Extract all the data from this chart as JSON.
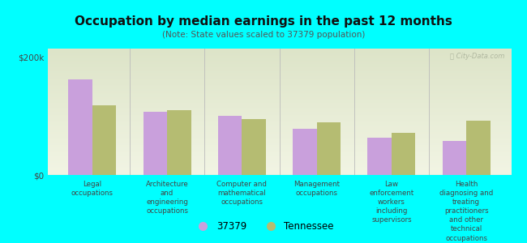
{
  "title": "Occupation by median earnings in the past 12 months",
  "subtitle": "(Note: State values scaled to 37379 population)",
  "background_color": "#00FFFF",
  "plot_bg_color_top": "#e8edd8",
  "plot_bg_color_bottom": "#f5f7ec",
  "categories": [
    "Legal\noccupations",
    "Architecture\nand\nengineering\noccupations",
    "Computer and\nmathematical\noccupations",
    "Management\noccupations",
    "Law\nenforcement\nworkers\nincluding\nsupervisors",
    "Health\ndiagnosing and\ntreating\npractitioners\nand other\ntechnical\noccupations"
  ],
  "values_37379": [
    163000,
    107000,
    100000,
    78000,
    63000,
    58000
  ],
  "values_tennessee": [
    118000,
    110000,
    95000,
    90000,
    72000,
    93000
  ],
  "color_37379": "#c9a0dc",
  "color_tennessee": "#b5bc72",
  "ylim": [
    0,
    215000
  ],
  "yticks": [
    0,
    200000
  ],
  "ytick_labels": [
    "$0",
    "$200k"
  ],
  "legend_37379": "37379",
  "legend_tennessee": "Tennessee",
  "watermark": "Ⓢ City-Data.com"
}
